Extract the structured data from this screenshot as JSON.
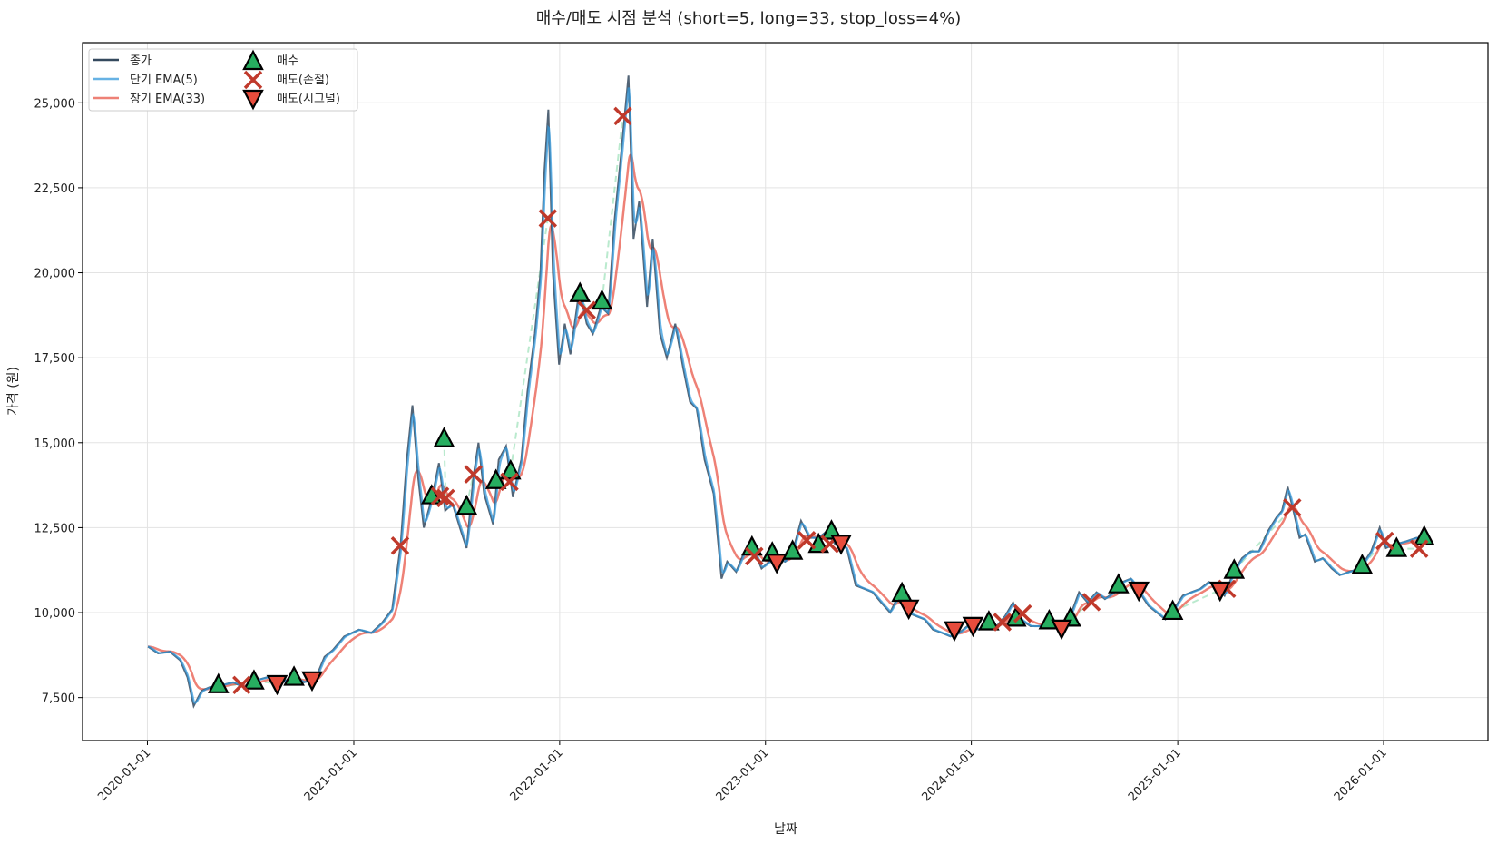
{
  "chart_data": {
    "type": "line",
    "title": "매수/매도 시점 분석 (short=5, long=33, stop_loss=4%)",
    "xlabel": "날짜",
    "ylabel": "가격 (원)",
    "xlim": [
      "2019-09-08",
      "2026-07-05"
    ],
    "ylim": [
      6236,
      26770
    ],
    "yticks": [
      7500,
      10000,
      12500,
      15000,
      17500,
      20000,
      22500,
      25000
    ],
    "ytick_labels": [
      "7,500",
      "10,000",
      "12,500",
      "15,000",
      "17,500",
      "20,000",
      "22,500",
      "25,000"
    ],
    "xticks": [
      "2020-01-01",
      "2021-01-01",
      "2022-01-01",
      "2023-01-01",
      "2024-01-01",
      "2025-01-01",
      "2026-01-01"
    ],
    "grid": true,
    "legend_placement": "upper-left",
    "ema_short_span": 5,
    "ema_long_span": 33,
    "legend": {
      "close": "종가",
      "ema_short": "단기 EMA(5)",
      "ema_long": "장기 EMA(33)",
      "buy": "매수",
      "sell_stop": "매도(손절)",
      "sell_signal": "매도(시그널)"
    },
    "colors": {
      "close": "#34495e",
      "ema_short": "#3498db",
      "ema_long": "#e74c3c",
      "buy": "#27ae60",
      "sell_stop": "#c0392b",
      "sell_signal": "#e74c3c",
      "trade_line": "#82d9a6"
    },
    "close": [
      [
        "2020-01-02",
        9000
      ],
      [
        "2020-01-20",
        8800
      ],
      [
        "2020-02-10",
        8850
      ],
      [
        "2020-02-28",
        8600
      ],
      [
        "2020-03-12",
        8100
      ],
      [
        "2020-03-23",
        7250
      ],
      [
        "2020-04-06",
        7700
      ],
      [
        "2020-04-20",
        7800
      ],
      [
        "2020-05-08",
        7850
      ],
      [
        "2020-06-01",
        7950
      ],
      [
        "2020-06-20",
        7800
      ],
      [
        "2020-07-10",
        8000
      ],
      [
        "2020-08-01",
        8100
      ],
      [
        "2020-08-20",
        7900
      ],
      [
        "2020-09-15",
        8100
      ],
      [
        "2020-10-05",
        7950
      ],
      [
        "2020-10-25",
        8050
      ],
      [
        "2020-11-10",
        8700
      ],
      [
        "2020-11-25",
        8900
      ],
      [
        "2020-12-15",
        9300
      ],
      [
        "2021-01-10",
        9500
      ],
      [
        "2021-02-01",
        9400
      ],
      [
        "2021-02-20",
        9700
      ],
      [
        "2021-03-10",
        10100
      ],
      [
        "2021-03-25",
        12000
      ],
      [
        "2021-04-05",
        14500
      ],
      [
        "2021-04-15",
        16100
      ],
      [
        "2021-04-25",
        14000
      ],
      [
        "2021-05-05",
        12500
      ],
      [
        "2021-05-20",
        13400
      ],
      [
        "2021-06-01",
        14400
      ],
      [
        "2021-06-12",
        13000
      ],
      [
        "2021-06-25",
        13200
      ],
      [
        "2021-07-10",
        12400
      ],
      [
        "2021-07-20",
        11900
      ],
      [
        "2021-08-01",
        14000
      ],
      [
        "2021-08-10",
        15000
      ],
      [
        "2021-08-20",
        13500
      ],
      [
        "2021-09-05",
        12600
      ],
      [
        "2021-09-15",
        14500
      ],
      [
        "2021-09-28",
        14900
      ],
      [
        "2021-10-10",
        13400
      ],
      [
        "2021-10-25",
        14500
      ],
      [
        "2021-11-05",
        16500
      ],
      [
        "2021-11-18",
        18200
      ],
      [
        "2021-11-28",
        20000
      ],
      [
        "2021-12-05",
        23000
      ],
      [
        "2021-12-12",
        24800
      ],
      [
        "2021-12-20",
        20000
      ],
      [
        "2021-12-31",
        17300
      ],
      [
        "2022-01-10",
        18500
      ],
      [
        "2022-01-20",
        17600
      ],
      [
        "2022-02-05",
        19500
      ],
      [
        "2022-02-18",
        18500
      ],
      [
        "2022-03-01",
        18200
      ],
      [
        "2022-03-15",
        19000
      ],
      [
        "2022-03-28",
        18800
      ],
      [
        "2022-04-08",
        21500
      ],
      [
        "2022-04-20",
        23500
      ],
      [
        "2022-05-03",
        25800
      ],
      [
        "2022-05-12",
        21000
      ],
      [
        "2022-05-22",
        22100
      ],
      [
        "2022-06-05",
        19000
      ],
      [
        "2022-06-15",
        21000
      ],
      [
        "2022-06-28",
        18200
      ],
      [
        "2022-07-10",
        17500
      ],
      [
        "2022-07-25",
        18500
      ],
      [
        "2022-08-08",
        17200
      ],
      [
        "2022-08-20",
        16200
      ],
      [
        "2022-09-01",
        16000
      ],
      [
        "2022-09-15",
        14500
      ],
      [
        "2022-10-01",
        13500
      ],
      [
        "2022-10-15",
        11000
      ],
      [
        "2022-10-25",
        11500
      ],
      [
        "2022-11-10",
        11200
      ],
      [
        "2022-11-25",
        11800
      ],
      [
        "2022-12-10",
        11900
      ],
      [
        "2022-12-25",
        11300
      ],
      [
        "2023-01-15",
        11600
      ],
      [
        "2023-02-05",
        11500
      ],
      [
        "2023-02-20",
        11900
      ],
      [
        "2023-03-05",
        12700
      ],
      [
        "2023-03-20",
        12200
      ],
      [
        "2023-04-05",
        12200
      ],
      [
        "2023-04-20",
        12400
      ],
      [
        "2023-05-05",
        12000
      ],
      [
        "2023-05-25",
        11900
      ],
      [
        "2023-06-10",
        10800
      ],
      [
        "2023-06-25",
        10700
      ],
      [
        "2023-07-10",
        10600
      ],
      [
        "2023-07-25",
        10300
      ],
      [
        "2023-08-10",
        10000
      ],
      [
        "2023-08-25",
        10500
      ],
      [
        "2023-09-10",
        10000
      ],
      [
        "2023-09-25",
        9900
      ],
      [
        "2023-10-10",
        9800
      ],
      [
        "2023-10-25",
        9500
      ],
      [
        "2023-11-10",
        9400
      ],
      [
        "2023-11-25",
        9300
      ],
      [
        "2023-12-10",
        9400
      ],
      [
        "2023-12-25",
        9600
      ],
      [
        "2024-01-15",
        9500
      ],
      [
        "2024-02-01",
        9700
      ],
      [
        "2024-02-15",
        9600
      ],
      [
        "2024-03-01",
        9900
      ],
      [
        "2024-03-15",
        10300
      ],
      [
        "2024-03-28",
        9800
      ],
      [
        "2024-04-15",
        9600
      ],
      [
        "2024-05-01",
        9600
      ],
      [
        "2024-05-20",
        9700
      ],
      [
        "2024-06-05",
        9500
      ],
      [
        "2024-06-20",
        9700
      ],
      [
        "2024-07-10",
        10600
      ],
      [
        "2024-07-25",
        10300
      ],
      [
        "2024-08-10",
        10600
      ],
      [
        "2024-08-25",
        10400
      ],
      [
        "2024-09-10",
        10600
      ],
      [
        "2024-09-25",
        10900
      ],
      [
        "2024-10-10",
        11000
      ],
      [
        "2024-10-25",
        10600
      ],
      [
        "2024-11-10",
        10200
      ],
      [
        "2024-11-25",
        10000
      ],
      [
        "2024-12-10",
        9800
      ],
      [
        "2024-12-25",
        10100
      ],
      [
        "2025-01-10",
        10500
      ],
      [
        "2025-01-25",
        10600
      ],
      [
        "2025-02-10",
        10700
      ],
      [
        "2025-02-25",
        10900
      ],
      [
        "2025-03-10",
        10800
      ],
      [
        "2025-03-25",
        10500
      ],
      [
        "2025-04-10",
        11200
      ],
      [
        "2025-04-25",
        11600
      ],
      [
        "2025-05-10",
        11800
      ],
      [
        "2025-05-25",
        11800
      ],
      [
        "2025-06-10",
        12400
      ],
      [
        "2025-06-25",
        12800
      ],
      [
        "2025-07-05",
        13000
      ],
      [
        "2025-07-15",
        13700
      ],
      [
        "2025-07-25",
        13000
      ],
      [
        "2025-08-05",
        12200
      ],
      [
        "2025-08-15",
        12300
      ],
      [
        "2025-09-01",
        11500
      ],
      [
        "2025-09-15",
        11600
      ],
      [
        "2025-10-01",
        11300
      ],
      [
        "2025-10-15",
        11100
      ],
      [
        "2025-11-01",
        11200
      ],
      [
        "2025-11-20",
        11300
      ],
      [
        "2025-12-10",
        11800
      ],
      [
        "2025-12-25",
        12500
      ],
      [
        "2026-01-05",
        11900
      ],
      [
        "2026-01-20",
        12000
      ],
      [
        "2026-02-10",
        12100
      ],
      [
        "2026-02-28",
        12200
      ],
      [
        "2026-03-15",
        12200
      ]
    ],
    "buy": [
      [
        "2020-05-06",
        7870
      ],
      [
        "2020-07-08",
        7980
      ],
      [
        "2020-09-17",
        8090
      ],
      [
        "2021-05-19",
        13430
      ],
      [
        "2021-06-10",
        15110
      ],
      [
        "2021-07-20",
        13120
      ],
      [
        "2021-09-10",
        13880
      ],
      [
        "2021-10-06",
        14160
      ],
      [
        "2022-02-06",
        19380
      ],
      [
        "2022-03-17",
        19160
      ],
      [
        "2022-12-08",
        11920
      ],
      [
        "2023-01-13",
        11750
      ],
      [
        "2023-02-18",
        11800
      ],
      [
        "2023-04-05",
        12000
      ],
      [
        "2023-04-28",
        12390
      ],
      [
        "2023-08-31",
        10560
      ],
      [
        "2024-02-01",
        9720
      ],
      [
        "2024-03-20",
        9830
      ],
      [
        "2024-05-18",
        9750
      ],
      [
        "2024-06-25",
        9830
      ],
      [
        "2024-09-18",
        10810
      ],
      [
        "2024-12-23",
        10030
      ],
      [
        "2025-04-11",
        11240
      ],
      [
        "2025-11-24",
        11380
      ],
      [
        "2026-01-24",
        11880
      ],
      [
        "2026-03-14",
        12220
      ]
    ],
    "sell_stop": [
      [
        "2020-06-16",
        7870
      ],
      [
        "2021-03-24",
        11970
      ],
      [
        "2021-06-03",
        13430
      ],
      [
        "2021-06-13",
        13370
      ],
      [
        "2021-08-01",
        14070
      ],
      [
        "2021-10-04",
        13850
      ],
      [
        "2021-12-11",
        21600
      ],
      [
        "2022-02-18",
        18900
      ],
      [
        "2022-04-23",
        24610
      ],
      [
        "2022-12-12",
        11660
      ],
      [
        "2023-03-15",
        12130
      ],
      [
        "2023-04-25",
        12020
      ],
      [
        "2024-02-25",
        9720
      ],
      [
        "2024-04-01",
        9970
      ],
      [
        "2024-08-01",
        10310
      ],
      [
        "2025-03-29",
        10700
      ],
      [
        "2025-07-23",
        13090
      ],
      [
        "2026-01-03",
        12110
      ],
      [
        "2026-03-05",
        11880
      ]
    ],
    "sell_signal": [
      [
        "2020-08-18",
        7920
      ],
      [
        "2020-10-19",
        8030
      ],
      [
        "2023-01-21",
        11490
      ],
      [
        "2023-05-15",
        12050
      ],
      [
        "2023-09-12",
        10140
      ],
      [
        "2023-12-02",
        9500
      ],
      [
        "2024-01-04",
        9630
      ],
      [
        "2024-06-09",
        9550
      ],
      [
        "2024-10-24",
        10670
      ],
      [
        "2025-03-17",
        10670
      ]
    ]
  }
}
